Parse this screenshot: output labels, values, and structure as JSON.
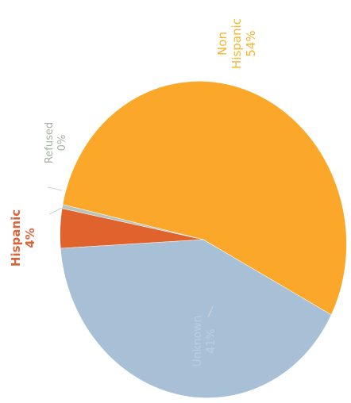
{
  "chart_data": {
    "type": "pie",
    "title": "",
    "slices": [
      {
        "label": "Non Hispanic",
        "label_lines": [
          "Non",
          "Hispanic"
        ],
        "percent_text": "54%",
        "value": 54,
        "color": "#FBA72A"
      },
      {
        "label": "Unknown",
        "label_lines": [
          "Unknown"
        ],
        "percent_text": "41%",
        "value": 41,
        "color": "#A8C0D6"
      },
      {
        "label": "Hispanic",
        "label_lines": [
          "Hispanic"
        ],
        "percent_text": "4%",
        "value": 4,
        "color": "#E0632E"
      },
      {
        "label": "Refused",
        "label_lines": [
          "Refused"
        ],
        "percent_text": "0%",
        "value": 0.4,
        "color": "#B8C4BC"
      }
    ],
    "legend": "none",
    "label_colors": {
      "Non Hispanic": "#F6B52B",
      "Unknown": "#B9CEE2",
      "Hispanic": "#D9653A",
      "Refused": "#A8B1A6"
    }
  }
}
